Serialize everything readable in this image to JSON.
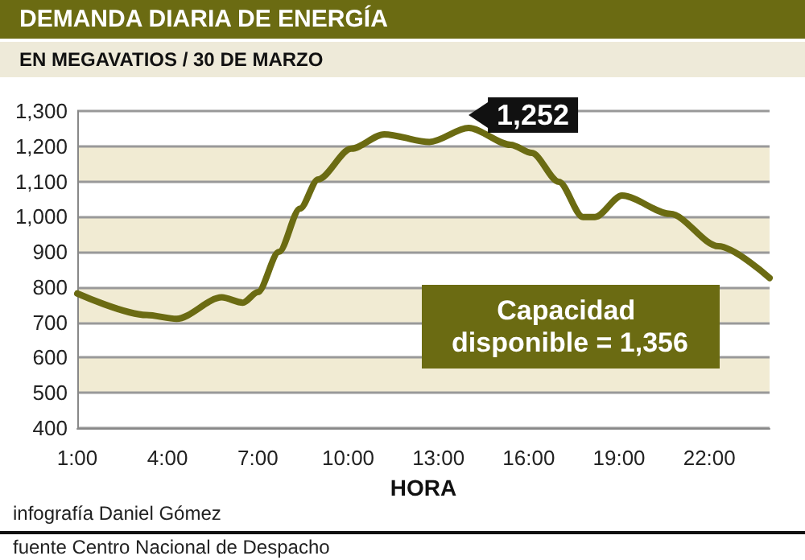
{
  "chart_data": {
    "type": "line",
    "title": "DEMANDA DIARIA DE ENERGÍA",
    "subtitle": "EN MEGAVATIOS / 30 DE MARZO",
    "xlabel": "HORA",
    "x": [
      1,
      3.3,
      4.3,
      5.8,
      6.5,
      7,
      7.7,
      8.4,
      9,
      10.1,
      11.2,
      12.7,
      14,
      15.4,
      16.1,
      17,
      17.8,
      18.2,
      19.1,
      20.7,
      22.3,
      24
    ],
    "series": [
      {
        "color": "#6b6b12",
        "values": [
          782,
          721,
          710,
          771,
          756,
          786,
          900,
          1023,
          1106,
          1193,
          1234,
          1212,
          1252,
          1204,
          1181,
          1099,
          999,
          999,
          1060,
          1008,
          916,
          826
        ]
      }
    ],
    "xlim": [
      1,
      24
    ],
    "xticks": [
      {
        "value": 1,
        "label": "1:00"
      },
      {
        "value": 4,
        "label": "4:00"
      },
      {
        "value": 7,
        "label": "7:00"
      },
      {
        "value": 10,
        "label": "10:00"
      },
      {
        "value": 13,
        "label": "13:00"
      },
      {
        "value": 16,
        "label": "16:00"
      },
      {
        "value": 19,
        "label": "19:00"
      },
      {
        "value": 22,
        "label": "22:00"
      }
    ],
    "ylim": [
      400,
      1300
    ],
    "yticks": [
      400,
      500,
      600,
      700,
      800,
      900,
      {
        "value": 1000,
        "label": "1,000"
      },
      {
        "value": 1100,
        "label": "1,100"
      },
      {
        "value": 1200,
        "label": "1,200"
      },
      {
        "value": 1300,
        "label": "1,300"
      }
    ],
    "grid": "y",
    "marker": "none",
    "line_style": "solid",
    "annotations": [
      {
        "text": "1,252",
        "x": 14,
        "y": 1252
      },
      "Capacidad disponible = 1,356",
      "infografía Daniel Gómez",
      "fuente Centro Nacional de Despacho"
    ]
  }
}
